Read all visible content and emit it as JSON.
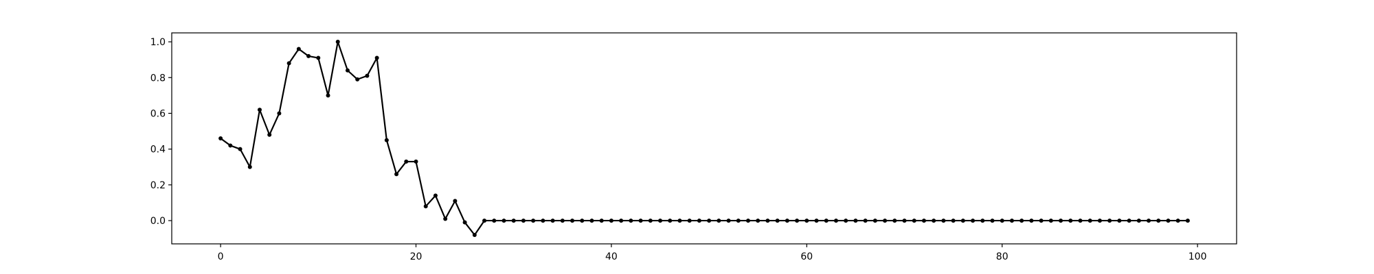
{
  "chart_data": {
    "type": "line",
    "title": "",
    "xlabel": "",
    "ylabel": "",
    "xlim": [
      -5,
      104
    ],
    "ylim": [
      -0.13,
      1.05
    ],
    "grid": false,
    "legend": "none",
    "line_color": "#000000",
    "marker": "dot",
    "xticks": [
      0,
      20,
      40,
      60,
      80,
      100
    ],
    "xtick_labels": [
      "0",
      "20",
      "40",
      "60",
      "80",
      "100"
    ],
    "yticks": [
      0.0,
      0.2,
      0.4,
      0.6,
      0.8,
      1.0
    ],
    "ytick_labels": [
      "0.0",
      "0.2",
      "0.4",
      "0.6",
      "0.8",
      "1.0"
    ],
    "series": [
      {
        "x": [
          0,
          1,
          2,
          3,
          4,
          5,
          6,
          7,
          8,
          9,
          10,
          11,
          12,
          13,
          14,
          15,
          16,
          17,
          18,
          19,
          20,
          21,
          22,
          23,
          24,
          25,
          26,
          27,
          28,
          29,
          30,
          31,
          32,
          33,
          34,
          35,
          36,
          37,
          38,
          39,
          40,
          41,
          42,
          43,
          44,
          45,
          46,
          47,
          48,
          49,
          50,
          51,
          52,
          53,
          54,
          55,
          56,
          57,
          58,
          59,
          60,
          61,
          62,
          63,
          64,
          65,
          66,
          67,
          68,
          69,
          70,
          71,
          72,
          73,
          74,
          75,
          76,
          77,
          78,
          79,
          80,
          81,
          82,
          83,
          84,
          85,
          86,
          87,
          88,
          89,
          90,
          91,
          92,
          93,
          94,
          95,
          96,
          97,
          98,
          99
        ],
        "y": [
          0.46,
          0.42,
          0.4,
          0.3,
          0.62,
          0.48,
          0.6,
          0.88,
          0.96,
          0.92,
          0.91,
          0.7,
          1.0,
          0.84,
          0.79,
          0.81,
          0.91,
          0.45,
          0.26,
          0.33,
          0.33,
          0.08,
          0.14,
          0.01,
          0.11,
          -0.01,
          -0.08,
          0,
          0,
          0,
          0,
          0,
          0,
          0,
          0,
          0,
          0,
          0,
          0,
          0,
          0,
          0,
          0,
          0,
          0,
          0,
          0,
          0,
          0,
          0,
          0,
          0,
          0,
          0,
          0,
          0,
          0,
          0,
          0,
          0,
          0,
          0,
          0,
          0,
          0,
          0,
          0,
          0,
          0,
          0,
          0,
          0,
          0,
          0,
          0,
          0,
          0,
          0,
          0,
          0,
          0,
          0,
          0,
          0,
          0,
          0,
          0,
          0,
          0,
          0,
          0,
          0,
          0,
          0,
          0,
          0,
          0,
          0,
          0,
          0
        ]
      }
    ]
  }
}
